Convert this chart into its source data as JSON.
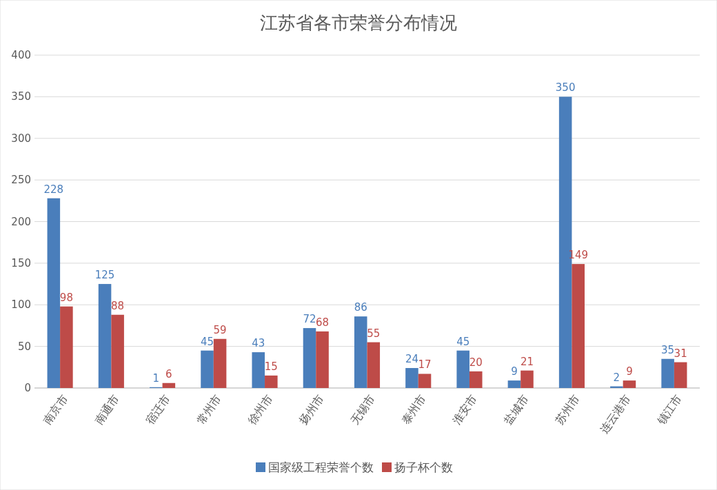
{
  "chart_data": {
    "type": "bar",
    "title": "江苏省各市荣誉分布情况",
    "categories": [
      "南京市",
      "南通市",
      "宿迁市",
      "常州市",
      "徐州市",
      "扬州市",
      "无锡市",
      "泰州市",
      "淮安市",
      "盐城市",
      "苏州市",
      "连云港市",
      "镇江市"
    ],
    "series": [
      {
        "name": "国家级工程荣誉个数",
        "color": "#4a7ebb",
        "values": [
          228,
          125,
          1,
          45,
          43,
          72,
          86,
          24,
          45,
          9,
          350,
          2,
          35
        ]
      },
      {
        "name": "扬子杯个数",
        "color": "#be4b48",
        "values": [
          98,
          88,
          6,
          59,
          15,
          68,
          55,
          17,
          20,
          21,
          149,
          9,
          31
        ]
      }
    ],
    "ylim": [
      0,
      400
    ],
    "yticks": [
      0,
      50,
      100,
      150,
      200,
      250,
      300,
      350,
      400
    ],
    "grid": "y",
    "legend": "bottom",
    "data_labels": true
  }
}
